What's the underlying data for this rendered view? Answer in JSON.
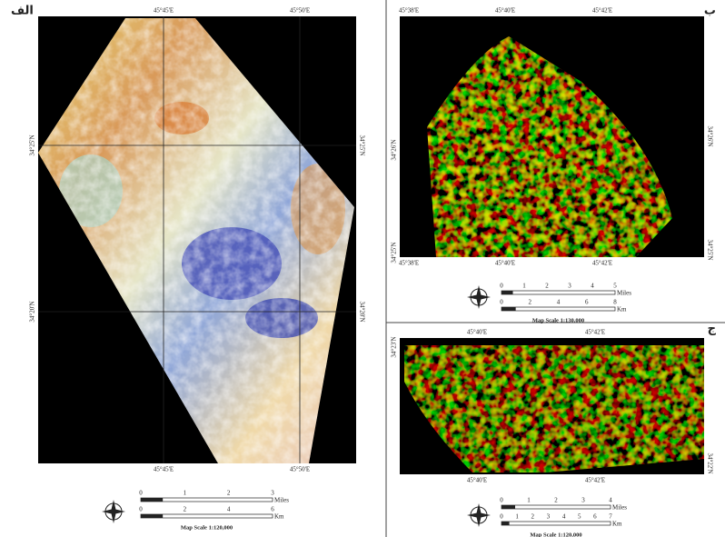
{
  "panels": [
    {
      "label": "الف",
      "top_labels": [
        "45°45'E",
        "45°50'E"
      ],
      "bottom_labels": [
        "45°45'E",
        "45°50'E"
      ],
      "left_labels": [
        "34°25'N",
        "34°20'N"
      ],
      "right_labels": [
        "34°25'N",
        "34°20'N"
      ],
      "scale": {
        "miles_ticks": [
          "0",
          "1",
          "2",
          "3"
        ],
        "miles_unit": "Miles",
        "km_ticks": [
          "0",
          "2",
          "4",
          "6"
        ],
        "km_unit": "Km",
        "caption": "Map Scale 1:120,000"
      }
    },
    {
      "label": "ب",
      "top_labels": [
        "45°38'E",
        "45°40'E",
        "45°42'E"
      ],
      "bottom_labels": [
        "45°38'E",
        "45°40'E",
        "45°42'E"
      ],
      "left_labels": [
        "34°26'N",
        "34°25'N"
      ],
      "right_labels": [
        "34°26'N",
        "34°25'N"
      ],
      "scale": {
        "miles_ticks": [
          "0",
          "1",
          "2",
          "3",
          "4",
          "5"
        ],
        "miles_unit": "Miles",
        "km_ticks": [
          "0",
          "2",
          "4",
          "6",
          "8"
        ],
        "km_unit": "Km",
        "caption": "Map Scale 1:130,000"
      }
    },
    {
      "label": "ج",
      "top_labels": [
        "45°40'E",
        "45°42'E"
      ],
      "bottom_labels": [
        "45°40'E",
        "45°42'E"
      ],
      "left_labels": [
        "34°23'N"
      ],
      "right_labels": [
        "34°22'N"
      ],
      "scale": {
        "miles_ticks": [
          "0",
          "1",
          "2",
          "3",
          "4"
        ],
        "miles_unit": "Miles",
        "km_ticks": [
          "0",
          "1",
          "2",
          "3",
          "4",
          "5",
          "6",
          "7"
        ],
        "km_unit": "Km",
        "caption": "Map Scale 1:120,000"
      }
    }
  ]
}
